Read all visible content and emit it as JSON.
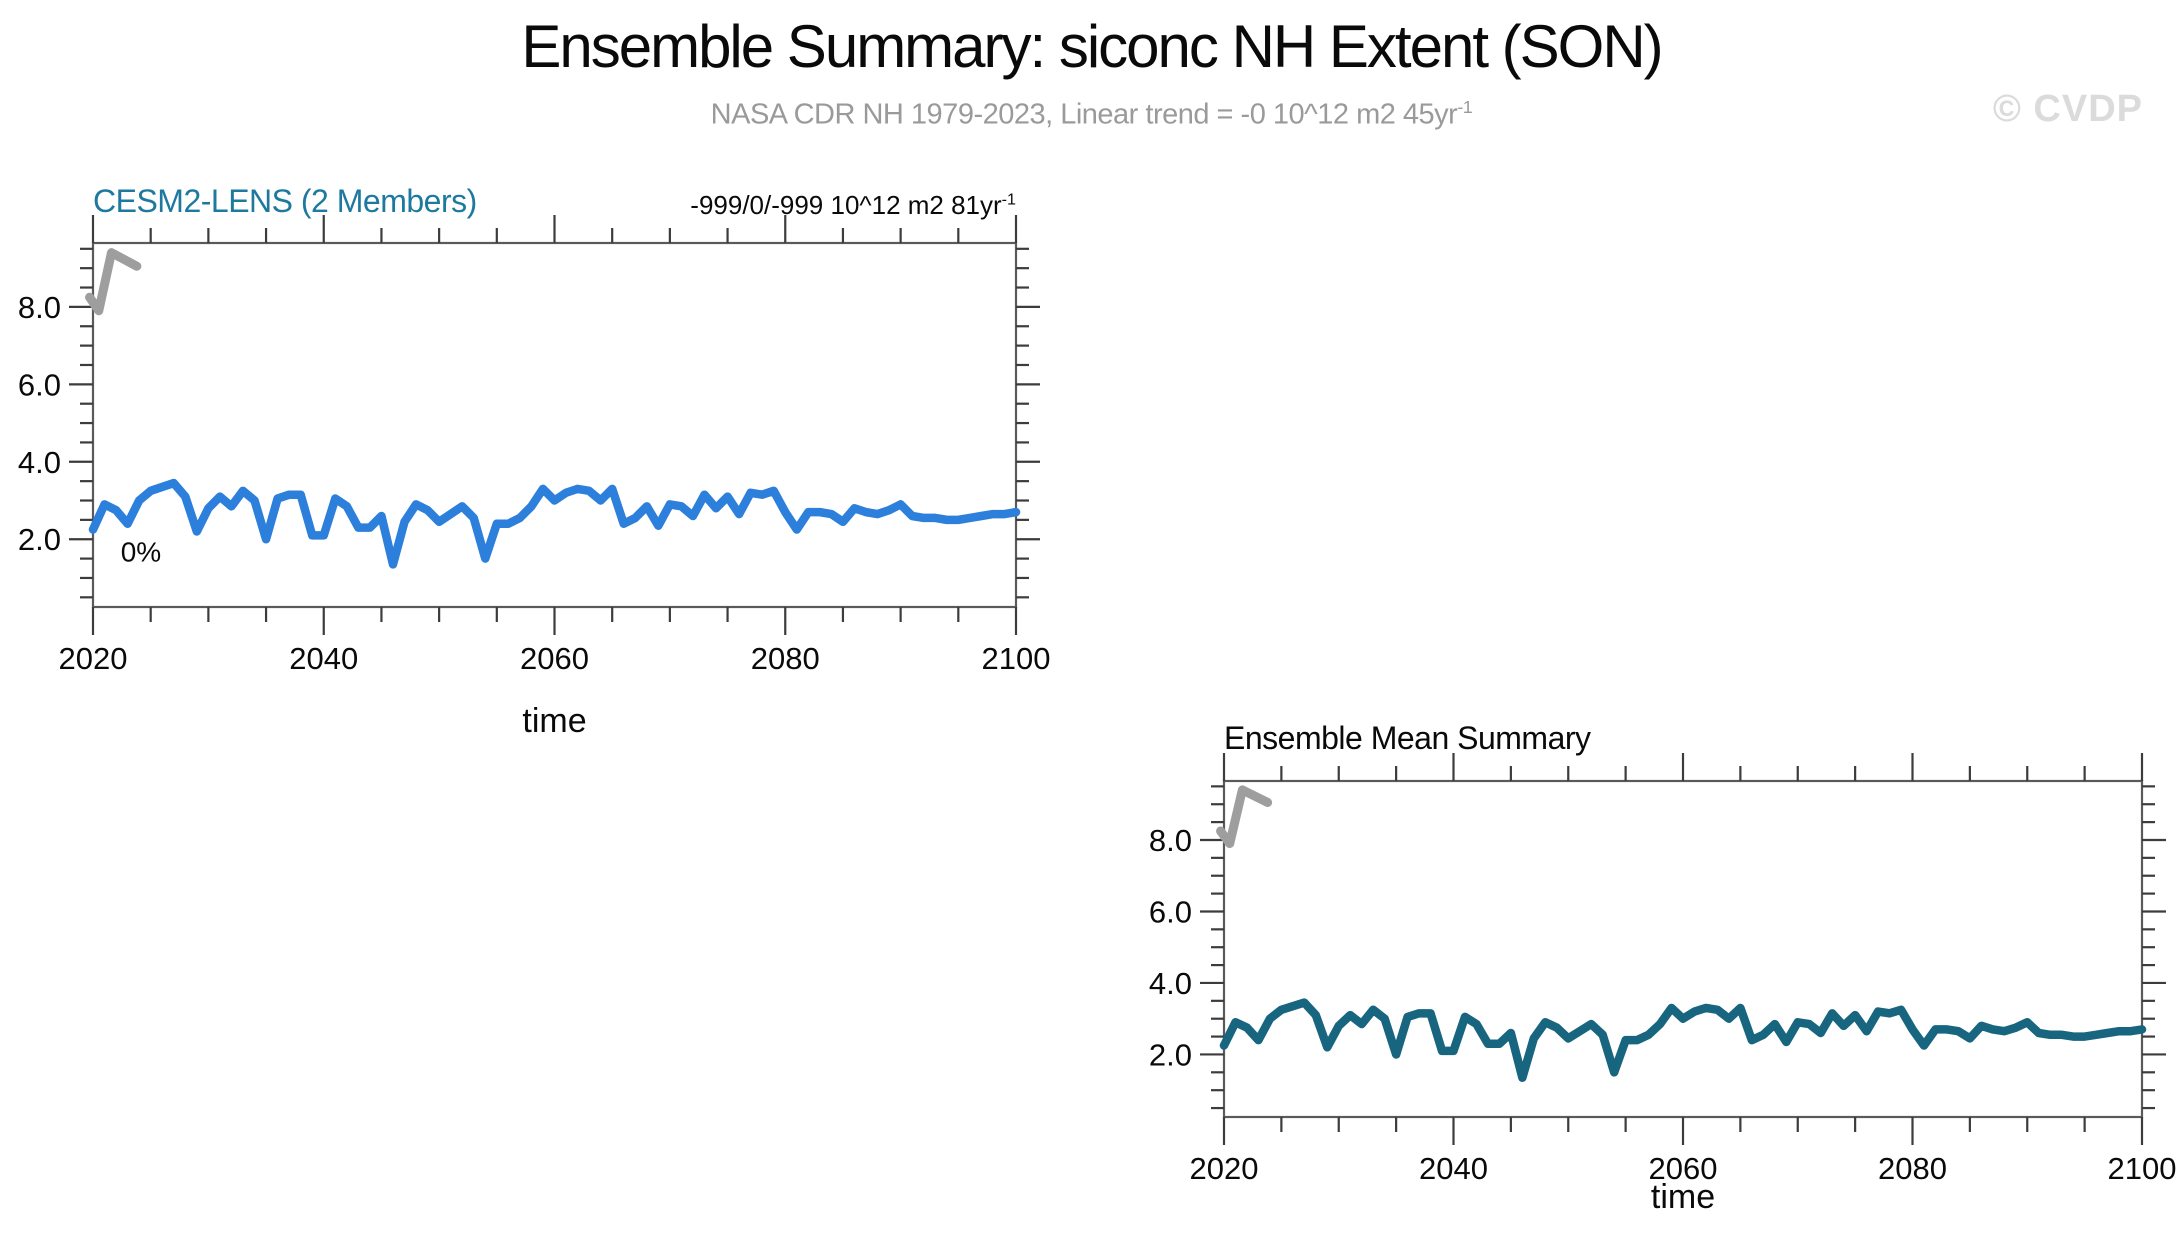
{
  "page": {
    "title": "Ensemble Summary: siconc NH Extent (SON)",
    "subtitle": "NASA CDR NH 1979-2023, Linear trend = -0 10^12 m2 45yr",
    "subtitle_exponent": "-1",
    "watermark": "© CVDP",
    "background": "#ffffff"
  },
  "chart_data": [
    {
      "type": "line",
      "title": "CESM2-LENS (2 Members)",
      "title_color": "#1d7a9e",
      "trend_label": "-999/0/-999 10^12 m2 81yr",
      "trend_exponent": "-1",
      "xlabel": "time",
      "ylabel": "",
      "xlim": [
        2020,
        2100
      ],
      "ylim": [
        0.25,
        9.65
      ],
      "x_ticks": [
        2020,
        2040,
        2060,
        2080,
        2100
      ],
      "x_tick_labels": [
        "2020",
        "2040",
        "2060",
        "2080",
        "2100"
      ],
      "x_minor_step": 5,
      "y_ticks": [
        2.0,
        4.0,
        6.0,
        8.0
      ],
      "y_tick_labels": [
        "2.0",
        "4.0",
        "6.0",
        "8.0"
      ],
      "y_minor_step": 0.5,
      "grid": false,
      "line_color": "#2c7fdb",
      "annotation": {
        "text": "0%",
        "x": 2022.4,
        "y": 1.42
      },
      "series": [
        {
          "name": "CESM2-LENS members",
          "x_start": 2020,
          "x_step": 1,
          "values": [
            2.25,
            2.9,
            2.75,
            2.4,
            3.0,
            3.25,
            3.35,
            3.45,
            3.1,
            2.2,
            2.8,
            3.1,
            2.85,
            3.25,
            3.0,
            2.0,
            3.05,
            3.15,
            3.15,
            2.1,
            2.1,
            3.05,
            2.85,
            2.3,
            2.3,
            2.6,
            1.35,
            2.45,
            2.9,
            2.75,
            2.45,
            2.65,
            2.85,
            2.55,
            1.5,
            2.4,
            2.4,
            2.55,
            2.85,
            3.3,
            3.0,
            3.2,
            3.3,
            3.25,
            3.0,
            3.3,
            2.4,
            2.55,
            2.85,
            2.35,
            2.9,
            2.85,
            2.6,
            3.15,
            2.8,
            3.1,
            2.65,
            3.2,
            3.15,
            3.25,
            2.7,
            2.25,
            2.7,
            2.7,
            2.65,
            2.45,
            2.8,
            2.7,
            2.65,
            2.75,
            2.9,
            2.6,
            2.55,
            2.55,
            2.5,
            2.5,
            2.55,
            2.6,
            2.65,
            2.65,
            2.7
          ]
        }
      ],
      "obs_overlay": {
        "name": "NASA CDR observations segment",
        "color": "#9e9e9e",
        "points": [
          [
            2019.7,
            8.25
          ],
          [
            2020.5,
            7.9
          ],
          [
            2021.6,
            9.4
          ],
          [
            2023.8,
            9.05
          ]
        ]
      }
    },
    {
      "type": "line",
      "title": "Ensemble Mean Summary",
      "title_color": "#0a0a0a",
      "xlabel": "time",
      "ylabel": "",
      "xlim": [
        2020,
        2100
      ],
      "ylim": [
        0.25,
        9.65
      ],
      "x_ticks": [
        2020,
        2040,
        2060,
        2080,
        2100
      ],
      "x_tick_labels": [
        "2020",
        "2040",
        "2060",
        "2080",
        "2100"
      ],
      "x_minor_step": 5,
      "y_ticks": [
        2.0,
        4.0,
        6.0,
        8.0
      ],
      "y_tick_labels": [
        "2.0",
        "4.0",
        "6.0",
        "8.0"
      ],
      "y_minor_step": 0.5,
      "grid": false,
      "line_color": "#186580",
      "series": [
        {
          "name": "Ensemble mean",
          "x_start": 2020,
          "x_step": 1,
          "values": [
            2.25,
            2.9,
            2.75,
            2.4,
            3.0,
            3.25,
            3.35,
            3.45,
            3.1,
            2.2,
            2.8,
            3.1,
            2.85,
            3.25,
            3.0,
            2.0,
            3.05,
            3.15,
            3.15,
            2.1,
            2.1,
            3.05,
            2.85,
            2.3,
            2.3,
            2.6,
            1.35,
            2.45,
            2.9,
            2.75,
            2.45,
            2.65,
            2.85,
            2.55,
            1.5,
            2.4,
            2.4,
            2.55,
            2.85,
            3.3,
            3.0,
            3.2,
            3.3,
            3.25,
            3.0,
            3.3,
            2.4,
            2.55,
            2.85,
            2.35,
            2.9,
            2.85,
            2.6,
            3.15,
            2.8,
            3.1,
            2.65,
            3.2,
            3.15,
            3.25,
            2.7,
            2.25,
            2.7,
            2.7,
            2.65,
            2.45,
            2.8,
            2.7,
            2.65,
            2.75,
            2.9,
            2.6,
            2.55,
            2.55,
            2.5,
            2.5,
            2.55,
            2.6,
            2.65,
            2.65,
            2.7
          ]
        }
      ],
      "obs_overlay": {
        "name": "NASA CDR observations segment",
        "color": "#9e9e9e",
        "points": [
          [
            2019.7,
            8.25
          ],
          [
            2020.5,
            7.9
          ],
          [
            2021.6,
            9.4
          ],
          [
            2023.8,
            9.05
          ]
        ]
      }
    }
  ]
}
